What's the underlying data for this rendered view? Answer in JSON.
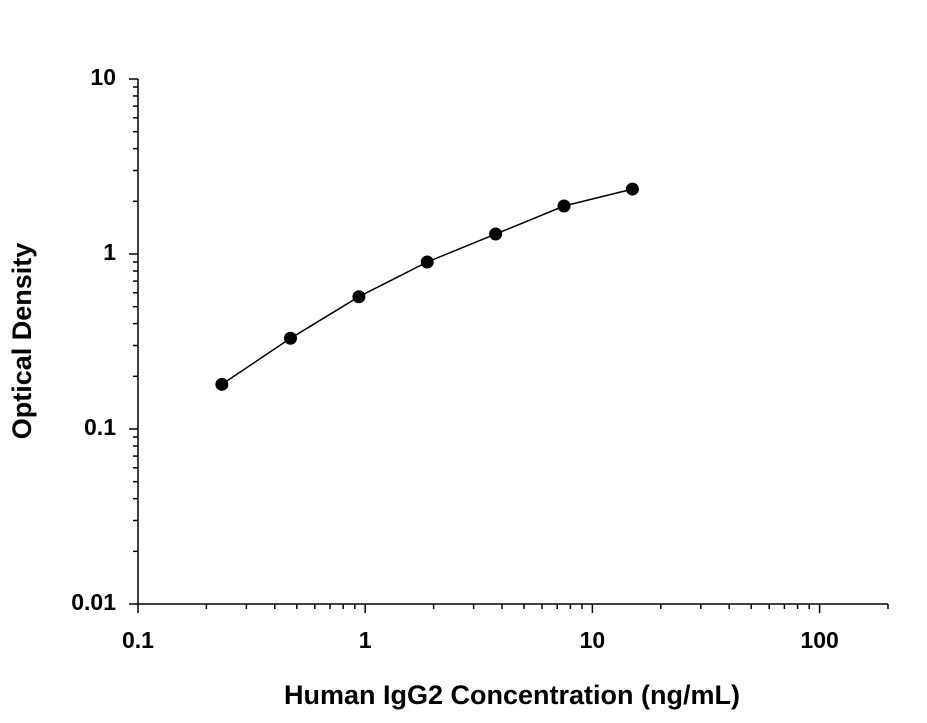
{
  "chart_data": {
    "type": "scatter",
    "x_label": "Human IgG2 Concentration (ng/mL)",
    "y_label": "Optical Density",
    "x": [
      0.234,
      0.469,
      0.938,
      1.875,
      3.75,
      7.5,
      15
    ],
    "values": [
      0.18,
      0.33,
      0.57,
      0.9,
      1.3,
      1.88,
      2.35
    ],
    "color": "#000000",
    "fit_line": true,
    "xscale": "log",
    "yscale": "log",
    "xlim": [
      0.1,
      200
    ],
    "ylim": [
      0.01,
      10
    ],
    "xticks": [
      0.1,
      1,
      10,
      100
    ],
    "yticks": [
      0.01,
      0.1,
      1,
      10
    ],
    "minor_ticks": true
  }
}
